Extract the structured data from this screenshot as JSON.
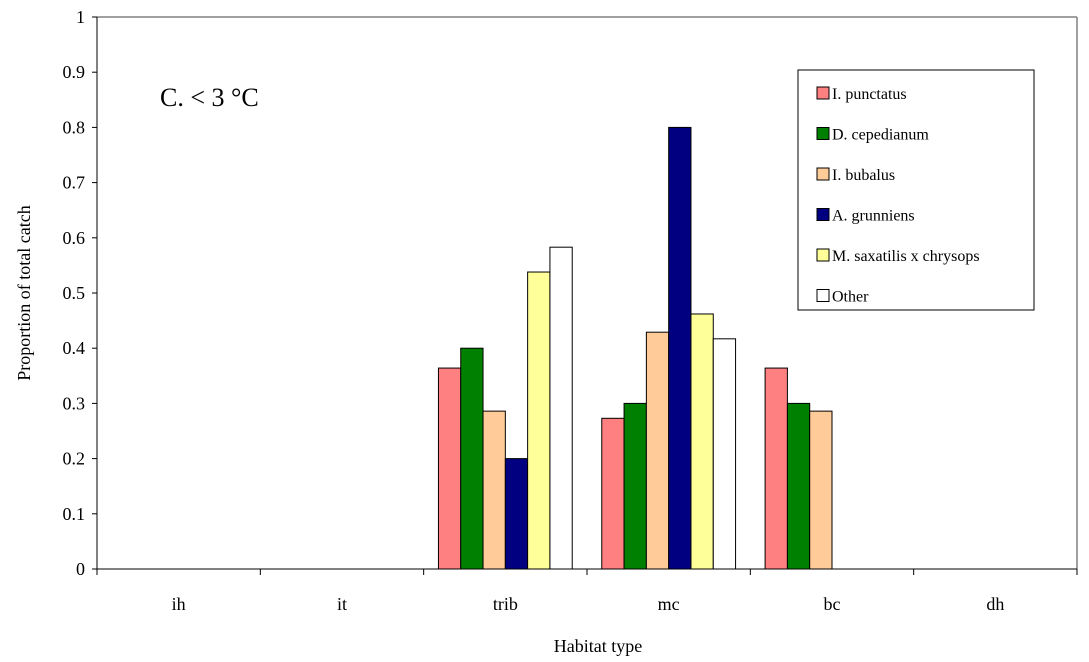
{
  "chart_data": {
    "type": "bar",
    "annotation": "C. < 3 °C",
    "xlabel": "Habitat type",
    "ylabel": "Proportion of total catch",
    "ylim": [
      0,
      1
    ],
    "yticks": [
      "0",
      "0.1",
      "0.2",
      "0.3",
      "0.4",
      "0.5",
      "0.6",
      "0.7",
      "0.8",
      "0.9",
      "1"
    ],
    "categories": [
      "ih",
      "it",
      "trib",
      "mc",
      "bc",
      "dh"
    ],
    "legend_position": "top-right",
    "grid": false,
    "series": [
      {
        "name": "I. punctatus",
        "color": "#FF8080",
        "values": [
          null,
          null,
          0.364,
          0.273,
          0.364,
          null
        ]
      },
      {
        "name": "D. cepedianum",
        "color": "#008000",
        "values": [
          null,
          null,
          0.4,
          0.3,
          0.3,
          null
        ]
      },
      {
        "name": "I. bubalus",
        "color": "#FFCC99",
        "values": [
          null,
          null,
          0.286,
          0.429,
          0.286,
          null
        ]
      },
      {
        "name": "A. grunniens",
        "color": "#000080",
        "values": [
          null,
          null,
          0.2,
          0.8,
          null,
          null
        ]
      },
      {
        "name": "M. saxatilis x chrysops",
        "color": "#FFFF99",
        "values": [
          null,
          null,
          0.538,
          0.462,
          null,
          null
        ]
      },
      {
        "name": "Other",
        "color": "#FFFFFF",
        "values": [
          null,
          null,
          0.583,
          0.417,
          null,
          null
        ]
      }
    ]
  }
}
